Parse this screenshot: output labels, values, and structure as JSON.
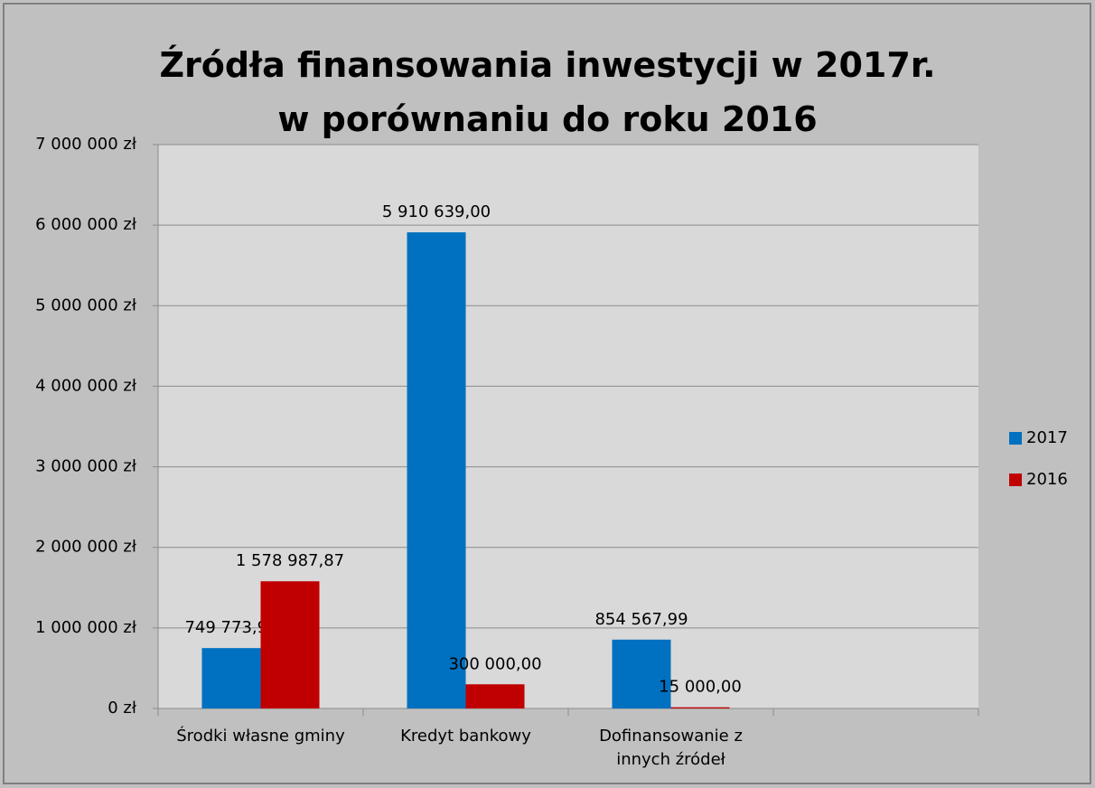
{
  "chart_data": {
    "type": "bar",
    "title": "Źródła finansowania inwestycji w  2017r.\nw porównaniu do roku 2016",
    "categories": [
      "Środki własne gminy",
      "Kredyt bankowy",
      "Dofinansowanie z innych źródeł",
      null
    ],
    "series": [
      {
        "name": "2017",
        "color": "#0070c0",
        "values": [
          749773.97,
          5910639,
          854567.99,
          null
        ],
        "value_labels": [
          "749 773,97",
          "5 910 639,00",
          "854 567,99",
          null
        ]
      },
      {
        "name": "2016",
        "color": "#c00000",
        "values": [
          1578987.87,
          300000,
          15000,
          null
        ],
        "value_labels": [
          "1 578 987,87",
          "300 000,00",
          "15 000,00",
          null
        ]
      }
    ],
    "ylim": [
      0,
      7000000
    ],
    "yticks": [
      {
        "value": 0,
        "label": "0 zł"
      },
      {
        "value": 1000000,
        "label": "1 000 000 zł"
      },
      {
        "value": 2000000,
        "label": "2 000 000 zł"
      },
      {
        "value": 3000000,
        "label": "3 000 000 zł"
      },
      {
        "value": 4000000,
        "label": "4 000 000 zł"
      },
      {
        "value": 5000000,
        "label": "5 000 000 zł"
      },
      {
        "value": 6000000,
        "label": "6 000 000 zł"
      },
      {
        "value": 7000000,
        "label": "7 000 000 zł"
      }
    ],
    "grid": true,
    "legend": "right"
  }
}
